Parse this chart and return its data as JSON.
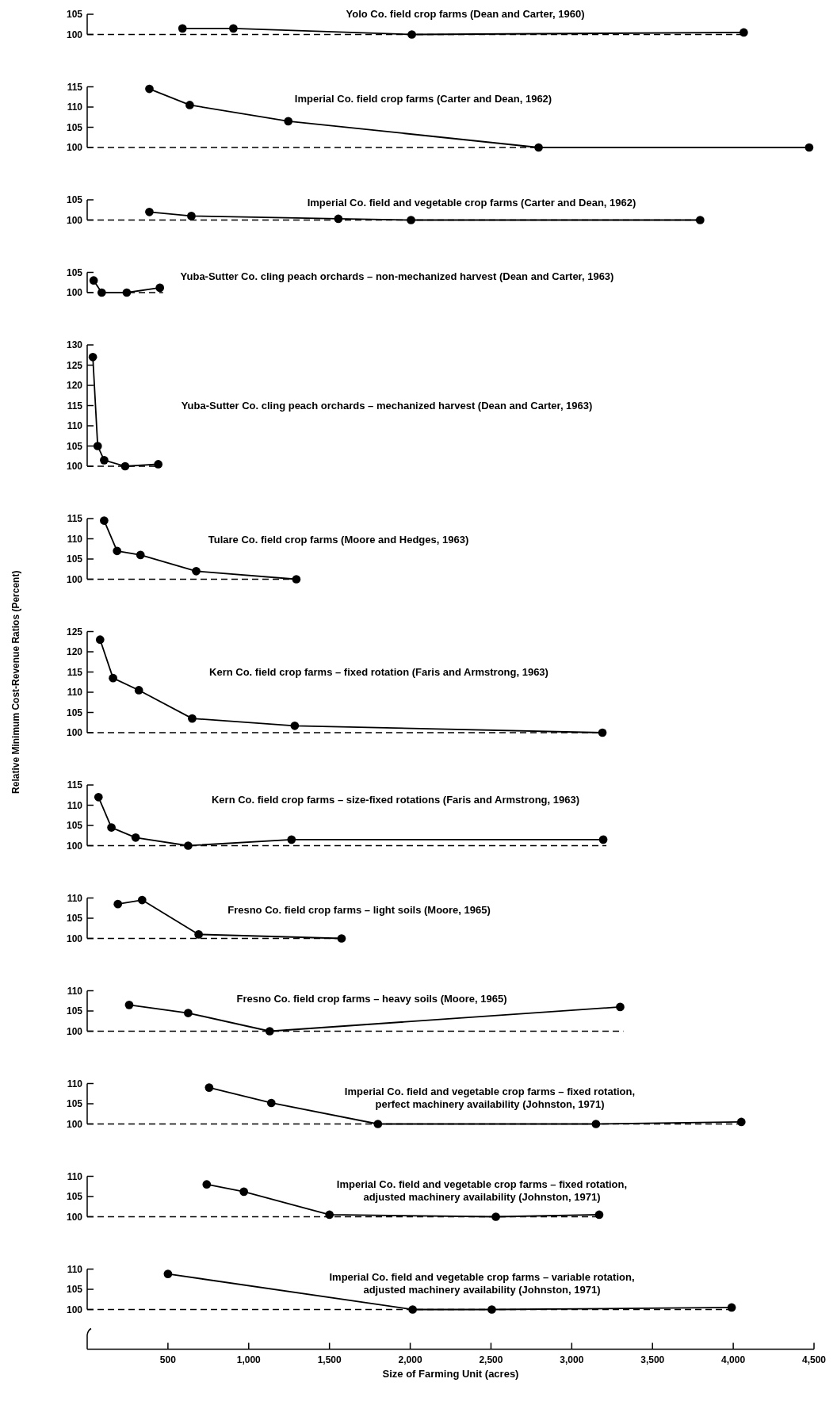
{
  "chart_data": [
    {
      "type": "line",
      "title": "Yolo Co. field crop farms (Dean and Carter, 1960)",
      "x": [
        590,
        905,
        2010,
        4065
      ],
      "series": [
        {
          "color": "#000000",
          "values": [
            101.5,
            101.5,
            100,
            100.5
          ]
        }
      ],
      "xlim": [
        0,
        4500
      ],
      "ylim": [
        100,
        105
      ],
      "yticks": [
        100,
        105
      ],
      "ref_lines": [
        {
          "axis": "y",
          "value": 100,
          "line_style": "dashed"
        }
      ],
      "marker": "circle",
      "line_style": "solid",
      "tick_labels": "y"
    },
    {
      "type": "line",
      "title": "Imperial Co. field crop farms (Carter and Dean, 1962)",
      "x": [
        385,
        635,
        1245,
        2795,
        4470
      ],
      "series": [
        {
          "color": "#000000",
          "values": [
            114.5,
            110.5,
            106.5,
            100,
            100
          ]
        }
      ],
      "xlim": [
        0,
        4500
      ],
      "ylim": [
        100,
        115
      ],
      "yticks": [
        100,
        105,
        110,
        115
      ],
      "ref_lines": [
        {
          "axis": "y",
          "value": 100,
          "line_style": "dashed"
        }
      ],
      "marker": "circle",
      "line_style": "solid",
      "tick_labels": "y"
    },
    {
      "type": "line",
      "title": "Imperial Co. field and vegetable crop farms (Carter and Dean, 1962)",
      "x": [
        385,
        645,
        1555,
        2005,
        3795
      ],
      "series": [
        {
          "color": "#000000",
          "values": [
            102,
            101,
            100.3,
            100,
            100
          ]
        }
      ],
      "xlim": [
        0,
        4500
      ],
      "ylim": [
        100,
        105
      ],
      "yticks": [
        100,
        105
      ],
      "ref_lines": [
        {
          "axis": "y",
          "value": 100,
          "line_style": "dashed"
        }
      ],
      "marker": "circle",
      "line_style": "solid",
      "tick_labels": "y"
    },
    {
      "type": "line",
      "title": "Yuba-Sutter Co. cling peach orchards – non-mechanized harvest (Dean and Carter, 1963)",
      "x": [
        40,
        90,
        245,
        450
      ],
      "series": [
        {
          "color": "#000000",
          "values": [
            103,
            100,
            100,
            101.2
          ]
        }
      ],
      "xlim": [
        0,
        4500
      ],
      "ylim": [
        100,
        105
      ],
      "yticks": [
        100,
        105
      ],
      "ref_lines": [
        {
          "axis": "y",
          "value": 100,
          "line_style": "dashed"
        }
      ],
      "marker": "circle",
      "line_style": "solid",
      "tick_labels": "y"
    },
    {
      "type": "line",
      "title": "Yuba-Sutter Co. cling peach orchards – mechanized harvest (Dean and Carter, 1963)",
      "x": [
        35,
        65,
        105,
        235,
        440
      ],
      "series": [
        {
          "color": "#000000",
          "values": [
            127,
            105,
            101.5,
            100,
            100.5
          ]
        }
      ],
      "xlim": [
        0,
        4500
      ],
      "ylim": [
        100,
        130
      ],
      "yticks": [
        100,
        105,
        110,
        115,
        120,
        125,
        130
      ],
      "ref_lines": [
        {
          "axis": "y",
          "value": 100,
          "line_style": "dashed"
        }
      ],
      "marker": "circle",
      "line_style": "solid",
      "tick_labels": "y"
    },
    {
      "type": "line",
      "title": "Tulare Co. field crop farms (Moore and Hedges, 1963)",
      "x": [
        105,
        185,
        330,
        675,
        1295
      ],
      "series": [
        {
          "color": "#000000",
          "values": [
            114.5,
            107,
            106,
            102,
            100
          ]
        }
      ],
      "xlim": [
        0,
        4500
      ],
      "ylim": [
        100,
        115
      ],
      "yticks": [
        100,
        105,
        110,
        115
      ],
      "ref_lines": [
        {
          "axis": "y",
          "value": 100,
          "line_style": "dashed"
        }
      ],
      "marker": "circle",
      "line_style": "solid",
      "tick_labels": "y"
    },
    {
      "type": "line",
      "title": "Kern Co. field crop farms – fixed rotation (Faris and Armstrong, 1963)",
      "ylabel": "Relative Minimum Cost-Revenue Ratios (Percent)",
      "x": [
        80,
        160,
        320,
        650,
        1285,
        3190
      ],
      "series": [
        {
          "color": "#000000",
          "values": [
            123,
            113.5,
            110.5,
            103.5,
            101.7,
            100
          ]
        }
      ],
      "xlim": [
        0,
        4500
      ],
      "ylim": [
        100,
        125
      ],
      "yticks": [
        100,
        105,
        110,
        115,
        120,
        125
      ],
      "ref_lines": [
        {
          "axis": "y",
          "value": 100,
          "line_style": "dashed"
        }
      ],
      "marker": "circle",
      "line_style": "solid",
      "tick_labels": "y"
    },
    {
      "type": "line",
      "title": "Kern Co. field crop farms – size-fixed rotations (Faris and Armstrong, 1963)",
      "x": [
        70,
        150,
        300,
        625,
        1265,
        3195
      ],
      "series": [
        {
          "color": "#000000",
          "values": [
            112,
            104.5,
            102,
            100,
            101.5,
            101.5
          ]
        }
      ],
      "xlim": [
        0,
        4500
      ],
      "ylim": [
        100,
        115
      ],
      "yticks": [
        100,
        105,
        110,
        115
      ],
      "ref_lines": [
        {
          "axis": "y",
          "value": 100,
          "line_style": "dashed"
        }
      ],
      "marker": "circle",
      "line_style": "solid",
      "tick_labels": "y"
    },
    {
      "type": "line",
      "title": "Fresno Co. field crop farms – light soils (Moore, 1965)",
      "x": [
        190,
        340,
        690,
        1575
      ],
      "series": [
        {
          "color": "#000000",
          "values": [
            108.5,
            109.5,
            101,
            100
          ]
        }
      ],
      "xlim": [
        0,
        4500
      ],
      "ylim": [
        100,
        110
      ],
      "yticks": [
        100,
        105,
        110
      ],
      "ref_lines": [
        {
          "axis": "y",
          "value": 100,
          "line_style": "dashed"
        }
      ],
      "marker": "circle",
      "line_style": "solid",
      "tick_labels": "y"
    },
    {
      "type": "line",
      "title": "Fresno Co. field crop farms – heavy soils (Moore, 1965)",
      "x": [
        260,
        625,
        1130,
        3300
      ],
      "series": [
        {
          "color": "#000000",
          "values": [
            106.5,
            104.5,
            100,
            106
          ]
        }
      ],
      "xlim": [
        0,
        4500
      ],
      "ylim": [
        100,
        110
      ],
      "yticks": [
        100,
        105,
        110
      ],
      "ref_lines": [
        {
          "axis": "y",
          "value": 100,
          "line_style": "dashed"
        }
      ],
      "marker": "circle",
      "line_style": "solid",
      "tick_labels": "y"
    },
    {
      "type": "line",
      "title": "Imperial Co. field and vegetable crop farms – fixed rotation,\nperfect machinery availability (Johnston, 1971)",
      "x": [
        755,
        1140,
        1800,
        3150,
        4050
      ],
      "series": [
        {
          "color": "#000000",
          "values": [
            109,
            105.2,
            100,
            100,
            100.5
          ]
        }
      ],
      "xlim": [
        0,
        4500
      ],
      "ylim": [
        100,
        110
      ],
      "yticks": [
        100,
        105,
        110
      ],
      "ref_lines": [
        {
          "axis": "y",
          "value": 100,
          "line_style": "dashed"
        }
      ],
      "marker": "circle",
      "line_style": "solid",
      "tick_labels": "y"
    },
    {
      "type": "line",
      "title": "Imperial Co. field and vegetable crop farms – fixed rotation,\nadjusted machinery availability (Johnston, 1971)",
      "x": [
        740,
        970,
        1500,
        2530,
        3170
      ],
      "series": [
        {
          "color": "#000000",
          "values": [
            108,
            106.2,
            100.5,
            100,
            100.5
          ]
        }
      ],
      "xlim": [
        0,
        4500
      ],
      "ylim": [
        100,
        110
      ],
      "yticks": [
        100,
        105,
        110
      ],
      "ref_lines": [
        {
          "axis": "y",
          "value": 100,
          "line_style": "dashed"
        }
      ],
      "marker": "circle",
      "line_style": "solid",
      "tick_labels": "y"
    },
    {
      "type": "line",
      "title": "Imperial Co. field and vegetable crop farms – variable rotation,\nadjusted machinery availability (Johnston, 1971)",
      "xlabel": "Size of Farming Unit (acres)",
      "x": [
        500,
        2015,
        2505,
        3990
      ],
      "series": [
        {
          "color": "#000000",
          "values": [
            108.8,
            100,
            100,
            100.5
          ]
        }
      ],
      "xlim": [
        0,
        4500
      ],
      "xticks": [
        {
          "value": 500,
          "label": "500"
        },
        {
          "value": 1000,
          "label": "1,000"
        },
        {
          "value": 1500,
          "label": "1,500"
        },
        {
          "value": 2000,
          "label": "2,000"
        },
        {
          "value": 2500,
          "label": "2,500"
        },
        {
          "value": 3000,
          "label": "3,000"
        },
        {
          "value": 3500,
          "label": "3,500"
        },
        {
          "value": 4000,
          "label": "4,000"
        },
        {
          "value": 4500,
          "label": "4,500"
        }
      ],
      "ylim": [
        100,
        110
      ],
      "yticks": [
        100,
        105,
        110
      ],
      "ref_lines": [
        {
          "axis": "y",
          "value": 100,
          "line_style": "dashed"
        }
      ],
      "marker": "circle",
      "line_style": "solid"
    }
  ]
}
